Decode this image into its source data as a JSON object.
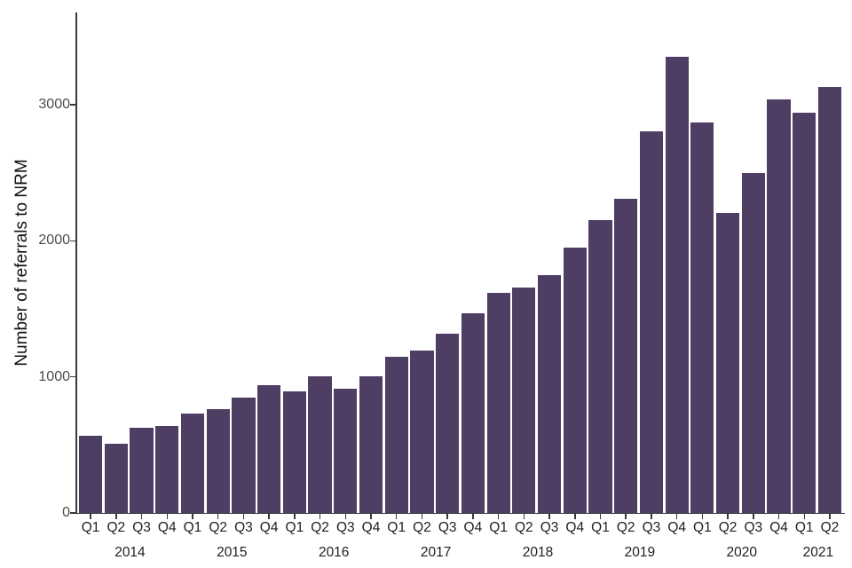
{
  "chart_data": {
    "type": "bar",
    "title": "",
    "xlabel": "",
    "ylabel": "Number of referrals to NRM",
    "grid": false,
    "legend": null,
    "ylim": [
      0,
      3680
    ],
    "yticks": [
      0,
      1000,
      2000,
      3000
    ],
    "bar_color": "#4f3e64",
    "axis_color": "#3a3a3a",
    "tick_label_color": "#4d4d4d",
    "categories": [
      "Q1",
      "Q2",
      "Q3",
      "Q4",
      "Q1",
      "Q2",
      "Q3",
      "Q4",
      "Q1",
      "Q2",
      "Q3",
      "Q4",
      "Q1",
      "Q2",
      "Q3",
      "Q4",
      "Q1",
      "Q2",
      "Q3",
      "Q4",
      "Q1",
      "Q2",
      "Q3",
      "Q4",
      "Q1",
      "Q2",
      "Q3",
      "Q4",
      "Q1",
      "Q2"
    ],
    "year_groups": [
      {
        "label": "2014",
        "quarters": 4
      },
      {
        "label": "2015",
        "quarters": 4
      },
      {
        "label": "2016",
        "quarters": 4
      },
      {
        "label": "2017",
        "quarters": 4
      },
      {
        "label": "2018",
        "quarters": 4
      },
      {
        "label": "2019",
        "quarters": 4
      },
      {
        "label": "2020",
        "quarters": 4
      },
      {
        "label": "2021",
        "quarters": 2
      }
    ],
    "series": [
      {
        "name": "Number of referrals to NRM",
        "values": [
          565,
          510,
          625,
          640,
          730,
          760,
          845,
          940,
          895,
          1005,
          910,
          1005,
          1150,
          1195,
          1320,
          1465,
          1620,
          1655,
          1750,
          1950,
          2150,
          2310,
          2805,
          3350,
          2870,
          2205,
          2500,
          3040,
          2945,
          3130
        ]
      }
    ]
  }
}
